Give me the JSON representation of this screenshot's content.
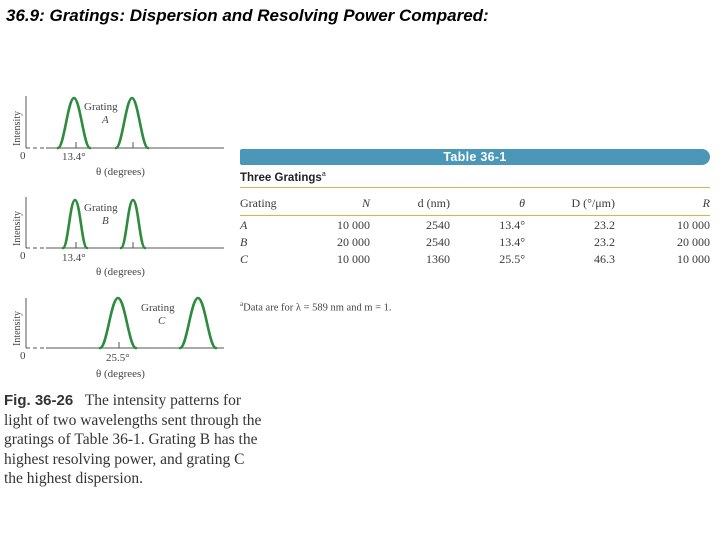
{
  "title": "36.9: Gratings: Dispersion and Resolving Power Compared:",
  "figure": {
    "y_axis_label": "Intensity",
    "zero_label": "0",
    "panels": [
      {
        "grating_word": "Grating",
        "grating_letter": "A",
        "angle_label": "13.4°",
        "x_axis_label": "θ (degrees)"
      },
      {
        "grating_word": "Grating",
        "grating_letter": "B",
        "angle_label": "13.4°",
        "x_axis_label": "θ (degrees)"
      },
      {
        "grating_word": "Grating",
        "grating_letter": "C",
        "angle_label": "25.5°",
        "x_axis_label": "θ (degrees)"
      }
    ]
  },
  "table": {
    "bar_title": "Table 36-1",
    "caption": "Three Gratings",
    "caption_marker": "a",
    "headers": [
      "Grating",
      "N",
      "d (nm)",
      "θ",
      "D (°/μm)",
      "R"
    ],
    "rows": [
      [
        "A",
        "10 000",
        "2540",
        "13.4°",
        "23.2",
        "10 000"
      ],
      [
        "B",
        "20 000",
        "2540",
        "13.4°",
        "23.2",
        "20 000"
      ],
      [
        "C",
        "10 000",
        "1360",
        "25.5°",
        "46.3",
        "10 000"
      ]
    ],
    "footnote_marker": "a",
    "footnote": "Data are for λ = 589 nm and m = 1."
  },
  "caption": {
    "label": "Fig. 36-26",
    "text": "The intensity patterns for light of two wavelengths sent through the gratings of Table 36-1. Grating B has the highest resolving power, and grating C the highest dispersion."
  },
  "colors": {
    "curve": "#2e8b3e",
    "table_bar": "#4a97b8",
    "rule": "#d9b24a"
  }
}
